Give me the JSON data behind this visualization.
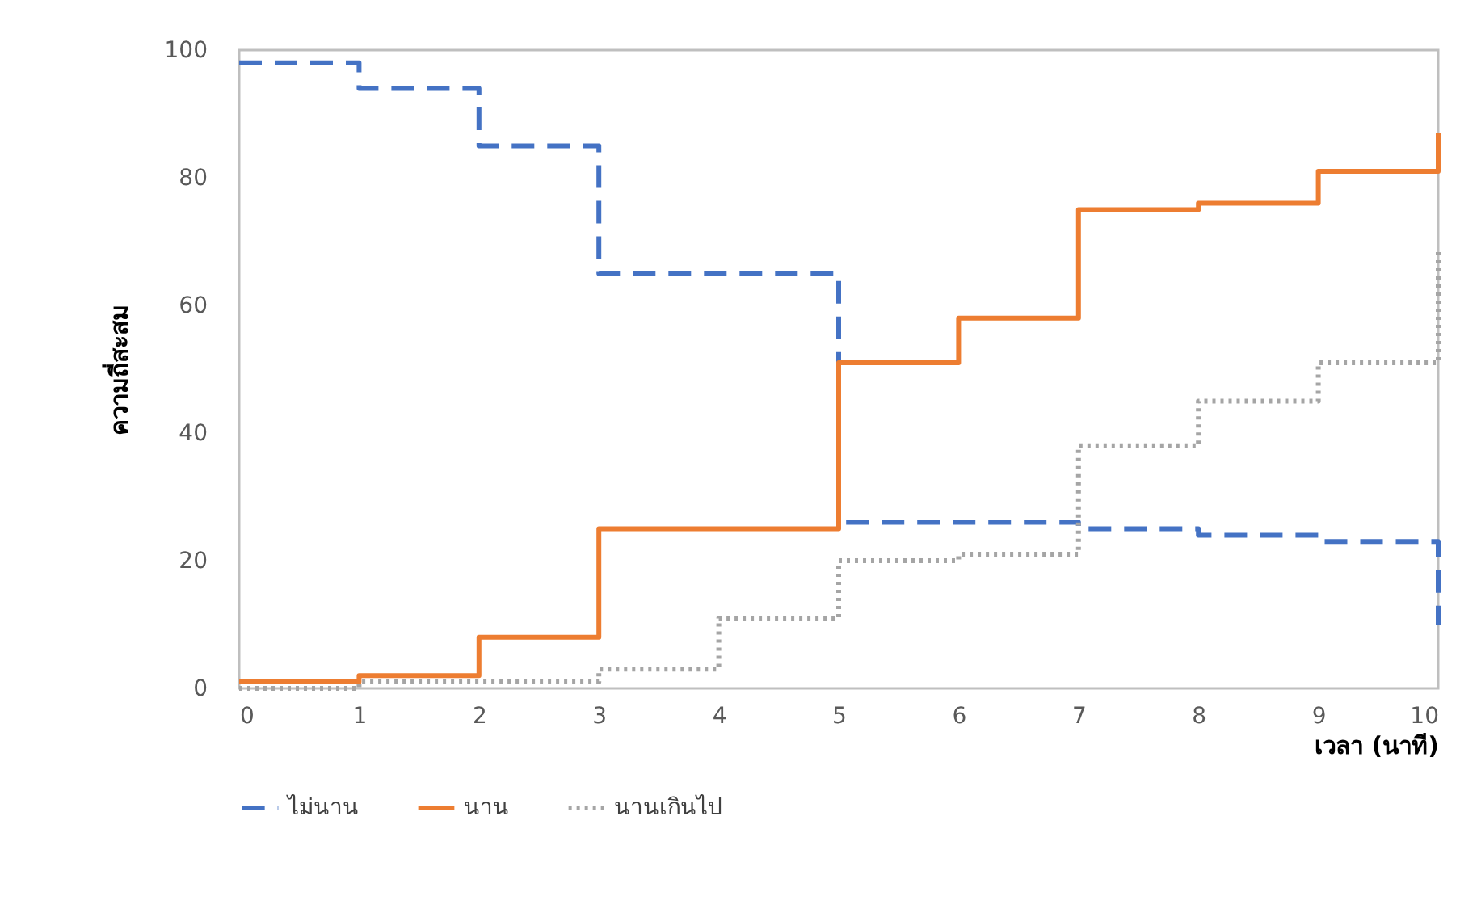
{
  "chart_data": {
    "type": "step",
    "xlabel": "เวลา (นาที)",
    "ylabel": "ความถี่สะสม",
    "xlim": [
      0,
      10
    ],
    "xticks": [
      0,
      1,
      2,
      3,
      4,
      5,
      6,
      7,
      8,
      9,
      10
    ],
    "ylim": [
      0,
      100
    ],
    "yticks": [
      0,
      20,
      40,
      60,
      80,
      100
    ],
    "grid": false,
    "legend": "bottom",
    "series": [
      {
        "name": "ไม่นาน",
        "color": "#4472c4",
        "line_style": "dashed",
        "x": [
          0,
          1,
          2,
          3,
          4,
          5,
          6,
          7,
          8,
          9,
          10,
          10
        ],
        "values": [
          98,
          94,
          85,
          65,
          65,
          26,
          26,
          25,
          24,
          23,
          23,
          10
        ]
      },
      {
        "name": "นาน",
        "color": "#ed7d31",
        "line_style": "solid",
        "x": [
          0,
          1,
          2,
          3,
          4,
          5,
          6,
          7,
          8,
          9,
          10,
          10
        ],
        "values": [
          1,
          2,
          8,
          25,
          25,
          51,
          58,
          75,
          76,
          81,
          81,
          87
        ]
      },
      {
        "name": "นานเกินไป",
        "color": "#a5a5a5",
        "line_style": "dotted",
        "x": [
          0,
          1,
          2,
          3,
          4,
          5,
          6,
          7,
          8,
          9,
          10,
          10
        ],
        "values": [
          0,
          1,
          1,
          3,
          11,
          20,
          21,
          38,
          45,
          51,
          51,
          69
        ]
      }
    ]
  }
}
